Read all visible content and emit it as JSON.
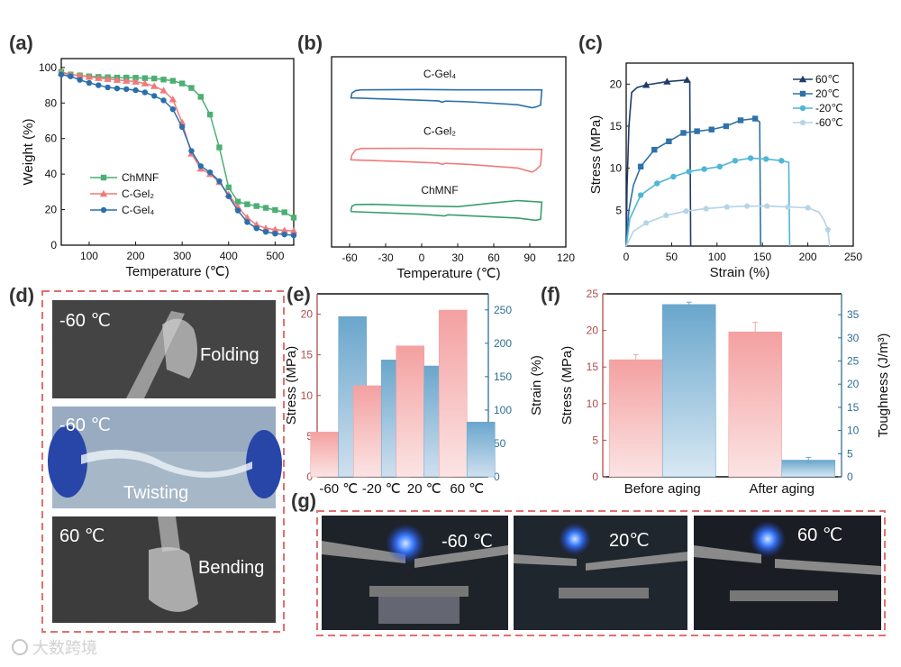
{
  "panel_labels": {
    "a": "(a)",
    "b": "(b)",
    "c": "(c)",
    "d": "(d)",
    "e": "(e)",
    "f": "(f)",
    "g": "(g)"
  },
  "watermark": "大数跨境",
  "chart_data": [
    {
      "id": "a",
      "type": "line",
      "xlabel": "Temperature (℃)",
      "ylabel": "Weight (%)",
      "xlim": [
        40,
        540
      ],
      "ylim": [
        0,
        105
      ],
      "xticks": [
        100,
        200,
        300,
        400,
        500
      ],
      "yticks": [
        0,
        20,
        40,
        60,
        80,
        100
      ],
      "legend": "bottom-left",
      "x": [
        40,
        60,
        80,
        100,
        120,
        140,
        160,
        180,
        200,
        220,
        240,
        260,
        280,
        300,
        320,
        340,
        360,
        380,
        400,
        420,
        440,
        460,
        480,
        500,
        520,
        540
      ],
      "series": [
        {
          "name": "ChMNF",
          "color": "#4caf73",
          "marker": "square",
          "values": [
            97.5,
            96,
            95.5,
            95,
            94.7,
            94.5,
            94.3,
            94.3,
            94.2,
            94,
            93.8,
            93.2,
            92.5,
            91,
            88.5,
            83.5,
            73.5,
            55,
            32.5,
            24.5,
            23,
            22,
            21,
            19.8,
            18.5,
            15.5
          ]
        },
        {
          "name": "C-Gel₂",
          "color": "#f07a7a",
          "marker": "triangle",
          "values": [
            97,
            96,
            95.5,
            94.7,
            94,
            93.5,
            93,
            92.5,
            92,
            91,
            89.5,
            87,
            82,
            69,
            51.5,
            43,
            40,
            35.5,
            28.5,
            21.5,
            15.5,
            11.5,
            9.5,
            8.8,
            8.3,
            8
          ]
        },
        {
          "name": "C-Gel₄",
          "color": "#2a6fad",
          "marker": "circle",
          "values": [
            96,
            95,
            93,
            91.3,
            90,
            88.8,
            88.2,
            87.8,
            87.2,
            86,
            84,
            81.5,
            76.5,
            66.5,
            53,
            44.5,
            41,
            36,
            27.5,
            19.5,
            13,
            9.5,
            7.5,
            6.5,
            6,
            5.5
          ]
        }
      ]
    },
    {
      "id": "b",
      "type": "line",
      "xlabel": "Temperature (℃)",
      "ylabel": "",
      "xlim": [
        -75,
        120
      ],
      "ylim": [
        0,
        100
      ],
      "xticks": [
        -60,
        -30,
        0,
        30,
        60,
        90,
        120
      ],
      "series": [
        {
          "name": "C-Gel₄",
          "color": "#2a6fad",
          "label_at": [
            15,
            89
          ],
          "points": [
            [
              -59,
              78
            ],
            [
              -58,
              81
            ],
            [
              -55,
              82.2
            ],
            [
              -50,
              82.6
            ],
            [
              0,
              82.8
            ],
            [
              30,
              82.6
            ],
            [
              100,
              82.6
            ],
            [
              99,
              74.6
            ],
            [
              95,
              73.6
            ],
            [
              92,
              73.2
            ],
            [
              80,
              74.8
            ],
            [
              40,
              76.3
            ],
            [
              20,
              76.7
            ],
            [
              17,
              76.1
            ],
            [
              14,
              76.8
            ],
            [
              -20,
              77.6
            ],
            [
              -59,
              78.4
            ]
          ]
        },
        {
          "name": "C-Gel₂",
          "color": "#f07a7a",
          "label_at": [
            15,
            59
          ],
          "points": [
            [
              -59,
              45.5
            ],
            [
              -58,
              48.5
            ],
            [
              -55,
              51
            ],
            [
              -50,
              51.8
            ],
            [
              0,
              51.9
            ],
            [
              30,
              51.6
            ],
            [
              100,
              51.3
            ],
            [
              99,
              43
            ],
            [
              95,
              40.5
            ],
            [
              92,
              39.4
            ],
            [
              80,
              41.5
            ],
            [
              40,
              43.4
            ],
            [
              20,
              44
            ],
            [
              17,
              43.4
            ],
            [
              14,
              44.1
            ],
            [
              -20,
              45
            ],
            [
              -59,
              45.8
            ]
          ]
        },
        {
          "name": "ChMNF",
          "color": "#3a9d6a",
          "label_at": [
            15,
            28
          ],
          "points": [
            [
              -59,
              18.6
            ],
            [
              -58,
              21.5
            ],
            [
              -55,
              22.3
            ],
            [
              -40,
              22.4
            ],
            [
              0,
              21.6
            ],
            [
              30,
              21.2
            ],
            [
              60,
              23.2
            ],
            [
              80,
              24.4
            ],
            [
              100,
              23.6
            ],
            [
              99,
              14.6
            ],
            [
              95,
              14
            ],
            [
              80,
              15.2
            ],
            [
              40,
              16.4
            ],
            [
              22,
              16.9
            ],
            [
              19,
              16.3
            ],
            [
              0,
              17.2
            ],
            [
              -59,
              18.6
            ]
          ]
        }
      ]
    },
    {
      "id": "c",
      "type": "line",
      "xlabel": "Strain (%)",
      "ylabel": "Stress (MPa)",
      "xlim": [
        0,
        250
      ],
      "ylim": [
        0.75,
        22.5
      ],
      "xticks": [
        0,
        50,
        100,
        150,
        200,
        250
      ],
      "yticks": [
        5,
        10,
        15,
        20
      ],
      "legend": "top-right",
      "series": [
        {
          "name": "60℃",
          "color": "#1f3d6b",
          "marker": "triangle",
          "points": [
            [
              0,
              0.75
            ],
            [
              1,
              8
            ],
            [
              3,
              15
            ],
            [
              6,
              19
            ],
            [
              12,
              19.6
            ],
            [
              22,
              19.9
            ],
            [
              45,
              20.3
            ],
            [
              67,
              20.5
            ],
            [
              70,
              20.3
            ],
            [
              71,
              0.75
            ]
          ],
          "markers": [
            [
              22,
              19.9
            ],
            [
              45,
              20.3
            ],
            [
              67,
              20.5
            ]
          ]
        },
        {
          "name": "20℃",
          "color": "#2f72a8",
          "marker": "square",
          "points": [
            [
              0,
              0.75
            ],
            [
              3,
              5
            ],
            [
              8,
              8
            ],
            [
              16,
              10.2
            ],
            [
              31,
              12.2
            ],
            [
              47,
              13.2
            ],
            [
              63,
              14.2
            ],
            [
              78,
              14.4
            ],
            [
              94,
              14.6
            ],
            [
              110,
              15
            ],
            [
              126,
              15.7
            ],
            [
              142,
              15.9
            ],
            [
              147,
              15.5
            ],
            [
              148,
              0.75
            ]
          ],
          "markers": [
            [
              16,
              10.2
            ],
            [
              31,
              12.2
            ],
            [
              47,
              13.2
            ],
            [
              63,
              14.2
            ],
            [
              78,
              14.4
            ],
            [
              94,
              14.6
            ],
            [
              110,
              15
            ],
            [
              126,
              15.7
            ],
            [
              142,
              15.9
            ]
          ]
        },
        {
          "name": "-20℃",
          "color": "#4fb6d6",
          "marker": "circle",
          "points": [
            [
              0,
              0.75
            ],
            [
              4,
              4
            ],
            [
              16,
              6.8
            ],
            [
              34,
              8.2
            ],
            [
              52,
              9
            ],
            [
              69,
              9.6
            ],
            [
              86,
              9.9
            ],
            [
              103,
              10.2
            ],
            [
              120,
              10.9
            ],
            [
              137,
              11.2
            ],
            [
              154,
              11.1
            ],
            [
              171,
              10.9
            ],
            [
              179,
              10.7
            ],
            [
              180,
              0.75
            ]
          ],
          "markers": [
            [
              16,
              6.8
            ],
            [
              34,
              8.2
            ],
            [
              52,
              9
            ],
            [
              69,
              9.6
            ],
            [
              86,
              9.9
            ],
            [
              103,
              10.2
            ],
            [
              120,
              10.9
            ],
            [
              137,
              11.2
            ],
            [
              154,
              11.1
            ],
            [
              171,
              10.9
            ]
          ]
        },
        {
          "name": "-60℃",
          "color": "#b5d4e6",
          "marker": "pentagon",
          "points": [
            [
              0,
              0.75
            ],
            [
              8,
              2.5
            ],
            [
              22,
              3.5
            ],
            [
              44,
              4.4
            ],
            [
              66,
              4.9
            ],
            [
              88,
              5.2
            ],
            [
              111,
              5.4
            ],
            [
              133,
              5.5
            ],
            [
              155,
              5.5
            ],
            [
              178,
              5.4
            ],
            [
              200,
              5.3
            ],
            [
              212,
              4.8
            ],
            [
              218,
              3.8
            ],
            [
              222,
              2.7
            ],
            [
              224,
              0.75
            ]
          ],
          "markers": [
            [
              22,
              3.5
            ],
            [
              44,
              4.4
            ],
            [
              66,
              4.9
            ],
            [
              88,
              5.2
            ],
            [
              111,
              5.4
            ],
            [
              133,
              5.5
            ],
            [
              155,
              5.5
            ],
            [
              178,
              5.4
            ],
            [
              200,
              5.3
            ],
            [
              222,
              2.7
            ]
          ]
        }
      ]
    },
    {
      "id": "e",
      "type": "bar",
      "categories": [
        "-60 ℃",
        "-20 ℃",
        "20 ℃",
        "60 ℃"
      ],
      "ylabel": "Stress (MPa)",
      "y2label": "Strain (%)",
      "ylim": [
        0,
        22.5
      ],
      "y2lim": [
        0,
        274
      ],
      "yticks": [
        0,
        5,
        10,
        15,
        20
      ],
      "y2ticks": [
        0,
        50,
        100,
        150,
        200,
        250
      ],
      "series": [
        {
          "name": "Stress",
          "axis": "left",
          "color": "#f4a3a3",
          "values": [
            5.5,
            11.2,
            16.1,
            20.5
          ]
        },
        {
          "name": "Strain",
          "axis": "right",
          "color": "#6fa8cc",
          "values": [
            240,
            175,
            166,
            82
          ]
        }
      ]
    },
    {
      "id": "f",
      "type": "bar",
      "categories": [
        "Before aging",
        "After aging"
      ],
      "ylabel": "Stress (MPa)",
      "y2label": "Toughness (J/m³)",
      "ylim": [
        0,
        25
      ],
      "y2lim": [
        0,
        39.5
      ],
      "yticks": [
        0,
        5,
        10,
        15,
        20,
        25
      ],
      "y2ticks": [
        0,
        5,
        10,
        15,
        20,
        25,
        30,
        35
      ],
      "series": [
        {
          "name": "Stress",
          "axis": "left",
          "color": "#f0a5a5",
          "values": [
            16.0,
            19.8
          ],
          "errors": [
            0.7,
            1.3
          ]
        },
        {
          "name": "Toughness",
          "axis": "right",
          "color": "#6fa8cc",
          "values": [
            37.2,
            3.6
          ],
          "errors": [
            0.5,
            0.6
          ]
        }
      ]
    }
  ],
  "photos_d": [
    {
      "temp": "-60 ℃",
      "action": "Folding"
    },
    {
      "temp": "-60 ℃",
      "action": "Twisting"
    },
    {
      "temp": "60 ℃",
      "action": "Bending"
    }
  ],
  "photos_g": [
    {
      "temp": "-60 ℃"
    },
    {
      "temp": "20℃"
    },
    {
      "temp": "60 ℃"
    }
  ],
  "colors": {
    "dash_border": "#e07070",
    "axis_left_e": "#b04a4a",
    "axis_right_e": "#2f6e96"
  }
}
